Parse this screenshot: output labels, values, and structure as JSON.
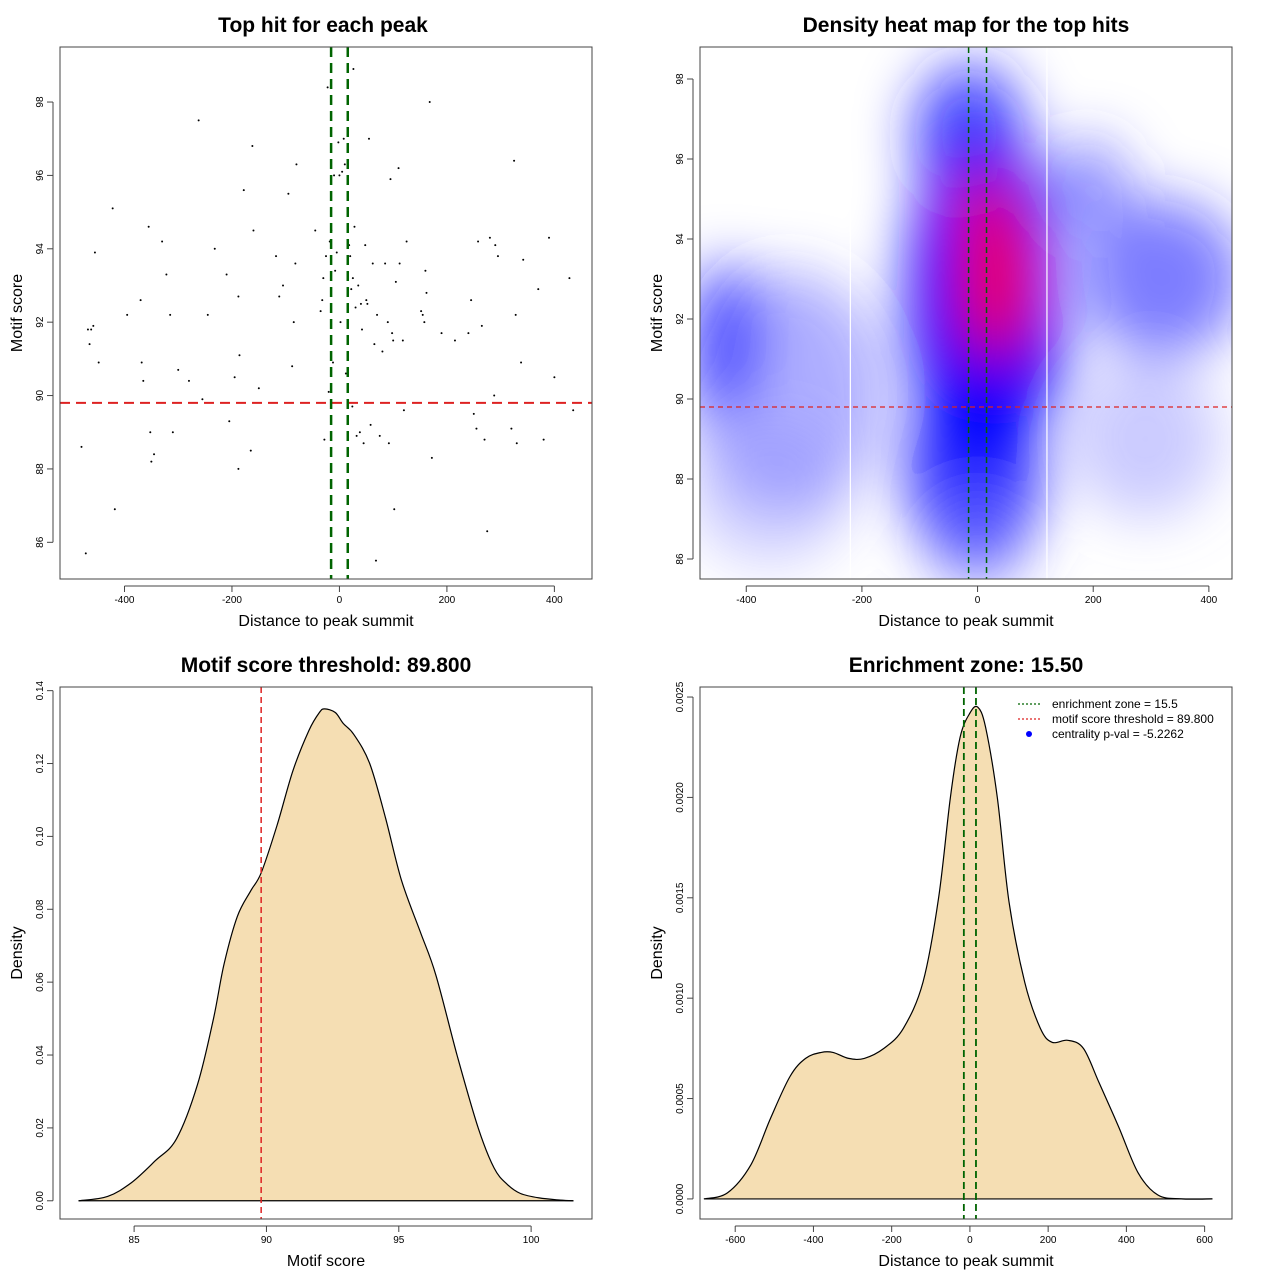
{
  "colors": {
    "density_fill": "#f5deb3",
    "threshold_line": "#dd2222",
    "zone_line": "#006400",
    "heat_high": "#ff0000",
    "heat_mid": "#0000ff",
    "centrality_dot": "#0000ff"
  },
  "chart_data": [
    {
      "type": "scatter",
      "title": "Top hit for each peak",
      "xlabel": "Distance to peak summit",
      "ylabel": "Motif score",
      "xlim": [
        -520,
        470
      ],
      "ylim": [
        85,
        99.5
      ],
      "xticks": [
        -400,
        -200,
        0,
        200,
        400
      ],
      "yticks": [
        86,
        88,
        90,
        92,
        94,
        96,
        98
      ],
      "threshold_y": 89.8,
      "zone_x": [
        -15.5,
        15.5
      ],
      "points": [
        [
          -472,
          85.7
        ],
        [
          -480,
          88.6
        ],
        [
          -465,
          91.4
        ],
        [
          -468,
          91.8
        ],
        [
          -462,
          91.8
        ],
        [
          -458,
          91.9
        ],
        [
          -455,
          93.9
        ],
        [
          -448,
          90.9
        ],
        [
          -422,
          95.1
        ],
        [
          -418,
          86.9
        ],
        [
          -395,
          92.2
        ],
        [
          -368,
          90.9
        ],
        [
          -365,
          90.4
        ],
        [
          -370,
          92.6
        ],
        [
          -355,
          94.6
        ],
        [
          -352,
          89.0
        ],
        [
          -350,
          88.2
        ],
        [
          -345,
          88.4
        ],
        [
          -330,
          94.2
        ],
        [
          -322,
          93.3
        ],
        [
          -315,
          92.2
        ],
        [
          -310,
          89.0
        ],
        [
          -300,
          90.7
        ],
        [
          -280,
          90.4
        ],
        [
          -262,
          97.5
        ],
        [
          -255,
          89.9
        ],
        [
          -245,
          92.2
        ],
        [
          -232,
          94.0
        ],
        [
          -210,
          93.3
        ],
        [
          -205,
          89.3
        ],
        [
          -195,
          90.5
        ],
        [
          -188,
          88.0
        ],
        [
          -186,
          91.1
        ],
        [
          -188,
          92.7
        ],
        [
          -178,
          95.6
        ],
        [
          -165,
          88.5
        ],
        [
          -160,
          94.5
        ],
        [
          -162,
          96.8
        ],
        [
          -150,
          90.2
        ],
        [
          -118,
          93.8
        ],
        [
          -112,
          92.7
        ],
        [
          -105,
          93.0
        ],
        [
          -95,
          95.5
        ],
        [
          -88,
          90.8
        ],
        [
          -85,
          92.0
        ],
        [
          -82,
          93.6
        ],
        [
          -80,
          96.3
        ],
        [
          -45,
          94.5
        ],
        [
          -35,
          92.3
        ],
        [
          -32,
          92.6
        ],
        [
          -30,
          93.2
        ],
        [
          -28,
          88.8
        ],
        [
          -25,
          93.8
        ],
        [
          -22,
          98.4
        ],
        [
          -20,
          90.1
        ],
        [
          -18,
          94.2
        ],
        [
          -15,
          94.5
        ],
        [
          -12,
          90.9
        ],
        [
          -10,
          96.0
        ],
        [
          -8,
          93.4
        ],
        [
          -5,
          93.9
        ],
        [
          -2,
          96.9
        ],
        [
          0,
          96.0
        ],
        [
          2,
          92.0
        ],
        [
          5,
          96.1
        ],
        [
          8,
          97.0
        ],
        [
          10,
          96.3
        ],
        [
          12,
          90.6
        ],
        [
          15,
          95.1
        ],
        [
          18,
          94.1
        ],
        [
          20,
          93.8
        ],
        [
          22,
          92.9
        ],
        [
          24,
          89.7
        ],
        [
          25,
          93.2
        ],
        [
          26,
          98.9
        ],
        [
          28,
          94.6
        ],
        [
          30,
          92.4
        ],
        [
          32,
          88.9
        ],
        [
          35,
          93.0
        ],
        [
          38,
          89.0
        ],
        [
          40,
          92.5
        ],
        [
          42,
          91.8
        ],
        [
          45,
          88.7
        ],
        [
          48,
          94.1
        ],
        [
          50,
          92.6
        ],
        [
          52,
          92.5
        ],
        [
          55,
          97.0
        ],
        [
          58,
          89.2
        ],
        [
          62,
          93.6
        ],
        [
          65,
          91.4
        ],
        [
          68,
          85.5
        ],
        [
          70,
          92.2
        ],
        [
          75,
          88.9
        ],
        [
          80,
          91.2
        ],
        [
          85,
          93.6
        ],
        [
          90,
          92.0
        ],
        [
          92,
          88.7
        ],
        [
          95,
          95.9
        ],
        [
          98,
          91.7
        ],
        [
          100,
          91.5
        ],
        [
          102,
          86.9
        ],
        [
          105,
          93.1
        ],
        [
          110,
          96.2
        ],
        [
          112,
          93.6
        ],
        [
          118,
          91.5
        ],
        [
          120,
          89.6
        ],
        [
          125,
          94.2
        ],
        [
          152,
          92.3
        ],
        [
          155,
          92.2
        ],
        [
          158,
          92.0
        ],
        [
          160,
          93.4
        ],
        [
          162,
          92.8
        ],
        [
          168,
          98.0
        ],
        [
          172,
          88.3
        ],
        [
          190,
          91.7
        ],
        [
          215,
          91.5
        ],
        [
          240,
          91.7
        ],
        [
          245,
          92.6
        ],
        [
          250,
          89.5
        ],
        [
          255,
          89.1
        ],
        [
          258,
          94.2
        ],
        [
          265,
          91.9
        ],
        [
          270,
          88.8
        ],
        [
          275,
          86.3
        ],
        [
          280,
          94.3
        ],
        [
          288,
          90.0
        ],
        [
          290,
          94.1
        ],
        [
          295,
          93.8
        ],
        [
          320,
          89.1
        ],
        [
          325,
          96.4
        ],
        [
          328,
          92.2
        ],
        [
          330,
          88.7
        ],
        [
          338,
          90.9
        ],
        [
          342,
          93.7
        ],
        [
          370,
          92.9
        ],
        [
          380,
          88.8
        ],
        [
          390,
          94.3
        ],
        [
          400,
          90.5
        ],
        [
          428,
          93.2
        ],
        [
          435,
          89.6
        ]
      ]
    },
    {
      "type": "heatmap",
      "title": "Density heat map for the top hits",
      "xlabel": "Distance to peak summit",
      "ylabel": "Motif score",
      "xlim": [
        -480,
        440
      ],
      "ylim": [
        85.5,
        98.8
      ],
      "xticks": [
        -400,
        -200,
        0,
        200,
        400
      ],
      "yticks": [
        86,
        88,
        90,
        92,
        94,
        96,
        98
      ],
      "threshold_y": 89.8,
      "zone_x": [
        -15.5,
        15.5
      ],
      "guide_x": [
        -220,
        120
      ]
    },
    {
      "type": "area",
      "title": "Motif score threshold: 89.800",
      "xlabel": "Motif score",
      "ylabel": "Density",
      "xlim": [
        82.2,
        102.3
      ],
      "ylim": [
        -0.005,
        0.141
      ],
      "xticks": [
        85,
        90,
        95,
        100
      ],
      "yticks": [
        0.0,
        0.02,
        0.04,
        0.06,
        0.08,
        0.1,
        0.12,
        0.14
      ],
      "ytick_labels": [
        "0.00",
        "0.02",
        "0.04",
        "0.06",
        "0.08",
        "0.10",
        "0.12",
        "0.14"
      ],
      "threshold_x": 89.8,
      "x": [
        82.9,
        84.0,
        84.9,
        85.8,
        86.6,
        87.4,
        88.0,
        88.4,
        88.9,
        89.4,
        89.8,
        90.4,
        91.0,
        91.6,
        92.0,
        92.2,
        92.6,
        92.9,
        93.3,
        93.9,
        94.5,
        95.1,
        95.8,
        96.4,
        97.2,
        98.0,
        98.6,
        99.1,
        99.6,
        100.3,
        101.1,
        101.6
      ],
      "y": [
        0.0,
        0.0012,
        0.005,
        0.011,
        0.017,
        0.032,
        0.05,
        0.065,
        0.078,
        0.085,
        0.09,
        0.103,
        0.118,
        0.129,
        0.134,
        0.135,
        0.134,
        0.131,
        0.128,
        0.12,
        0.105,
        0.088,
        0.074,
        0.062,
        0.04,
        0.02,
        0.009,
        0.0045,
        0.002,
        0.0008,
        0.0002,
        0.0
      ]
    },
    {
      "type": "area",
      "title": "Enrichment zone: 15.50",
      "xlabel": "Distance to peak summit",
      "ylabel": "Density",
      "xlim": [
        -690,
        670
      ],
      "ylim": [
        -0.0001,
        0.00255
      ],
      "xticks": [
        -600,
        -400,
        -200,
        0,
        200,
        400,
        600
      ],
      "yticks": [
        0.0,
        0.0005,
        0.001,
        0.0015,
        0.002,
        0.0025
      ],
      "ytick_labels": [
        "0.0000",
        "0.0005",
        "0.0010",
        "0.0015",
        "0.0020",
        "0.0025"
      ],
      "zone_x": [
        -15.5,
        15.5
      ],
      "x": [
        -680,
        -620,
        -560,
        -510,
        -460,
        -420,
        -380,
        -350,
        -310,
        -270,
        -220,
        -170,
        -120,
        -80,
        -50,
        -25,
        0,
        20,
        40,
        70,
        100,
        140,
        180,
        210,
        250,
        290,
        330,
        380,
        430,
        480,
        540,
        620
      ],
      "y": [
        0.0,
        3e-05,
        0.00017,
        0.0004,
        0.00061,
        0.0007,
        0.00073,
        0.00073,
        0.0007,
        0.0007,
        0.00075,
        0.00085,
        0.00108,
        0.0015,
        0.002,
        0.0023,
        0.00242,
        0.00245,
        0.00235,
        0.002,
        0.00148,
        0.00108,
        0.00085,
        0.00078,
        0.00079,
        0.00075,
        0.00058,
        0.00036,
        0.00013,
        2e-05,
        0.0,
        0.0
      ],
      "legend": {
        "position": "top-right",
        "entries": [
          {
            "label": "enrichment zone = 15.5",
            "color": "#006400",
            "style": "dotted-line"
          },
          {
            "label": "motif score threshold = 89.800",
            "color": "#dd2222",
            "style": "dotted-line"
          },
          {
            "label": "centrality p-val = -5.2262",
            "color": "#0000ff",
            "style": "dot"
          }
        ]
      }
    }
  ]
}
